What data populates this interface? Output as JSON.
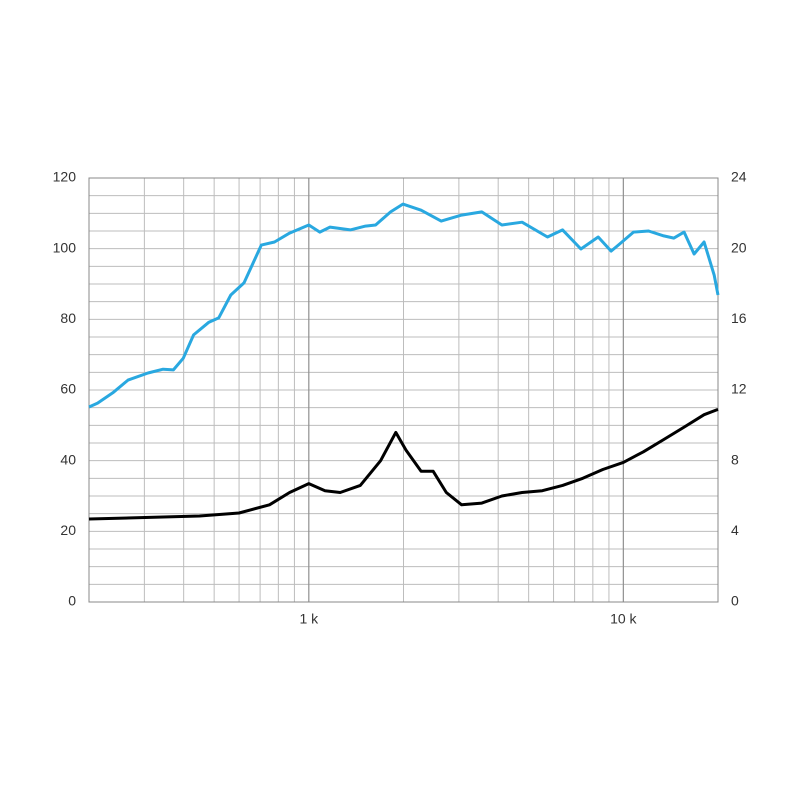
{
  "chart_data": {
    "type": "line",
    "log_x": true,
    "grid": true,
    "minor_grid": true,
    "xlim": [
      200,
      20000
    ],
    "xticks": [
      {
        "value": 1000,
        "label": "1 k"
      },
      {
        "value": 10000,
        "label": "10 k"
      }
    ],
    "ylim": [
      0,
      120
    ],
    "yticks": [
      0,
      20,
      40,
      60,
      80,
      100,
      120
    ],
    "y2lim": [
      0,
      24
    ],
    "y2ticks": [
      0,
      4,
      8,
      12,
      16,
      20,
      24
    ],
    "series": [
      {
        "color": "#29a8e0",
        "x": [
          200,
          213,
          238,
          266,
          308,
          344,
          371,
          399,
          430,
          481,
          517,
          565,
          622,
          706,
          778,
          869,
          1000,
          1084,
          1168,
          1355,
          1514,
          1630,
          1820,
          1991,
          2275,
          2636,
          3060,
          3548,
          4111,
          4766,
          5741,
          6412,
          7328,
          8318,
          9141,
          9636,
          10770,
          12030,
          13450,
          14480,
          15600,
          16790,
          18070,
          19450,
          20000
        ],
        "values": [
          55.2,
          56.3,
          59.2,
          62.8,
          64.8,
          65.9,
          65.7,
          69,
          75.6,
          79.2,
          80.4,
          86.9,
          90.3,
          101,
          101.9,
          104.4,
          106.7,
          104.7,
          106.1,
          105.3,
          106.4,
          106.7,
          110.4,
          112.6,
          110.9,
          107.8,
          109.5,
          110.4,
          106.7,
          107.5,
          103.3,
          105.3,
          99.9,
          103.3,
          99.3,
          101,
          104.7,
          105,
          103.6,
          103,
          104.7,
          98.5,
          101.9,
          92.5,
          86.9
        ]
      },
      {
        "color": "#000000",
        "axis": "y2",
        "x": [
          200,
          449,
          600,
          750,
          869,
          1000,
          1126,
          1258,
          1458,
          1691,
          1890,
          2037,
          2275,
          2486,
          2737,
          3060,
          3548,
          4111,
          4766,
          5525,
          6412,
          7430,
          8607,
          10000,
          11580,
          13450,
          15600,
          18070,
          20000
        ],
        "values": [
          4.7,
          4.87,
          5.04,
          5.5,
          6.2,
          6.7,
          6.3,
          6.2,
          6.6,
          8.0,
          9.6,
          8.6,
          7.4,
          7.4,
          6.2,
          5.5,
          5.6,
          6.0,
          6.2,
          6.3,
          6.6,
          7.0,
          7.5,
          7.9,
          8.5,
          9.2,
          9.9,
          10.6,
          10.9
        ]
      }
    ]
  }
}
